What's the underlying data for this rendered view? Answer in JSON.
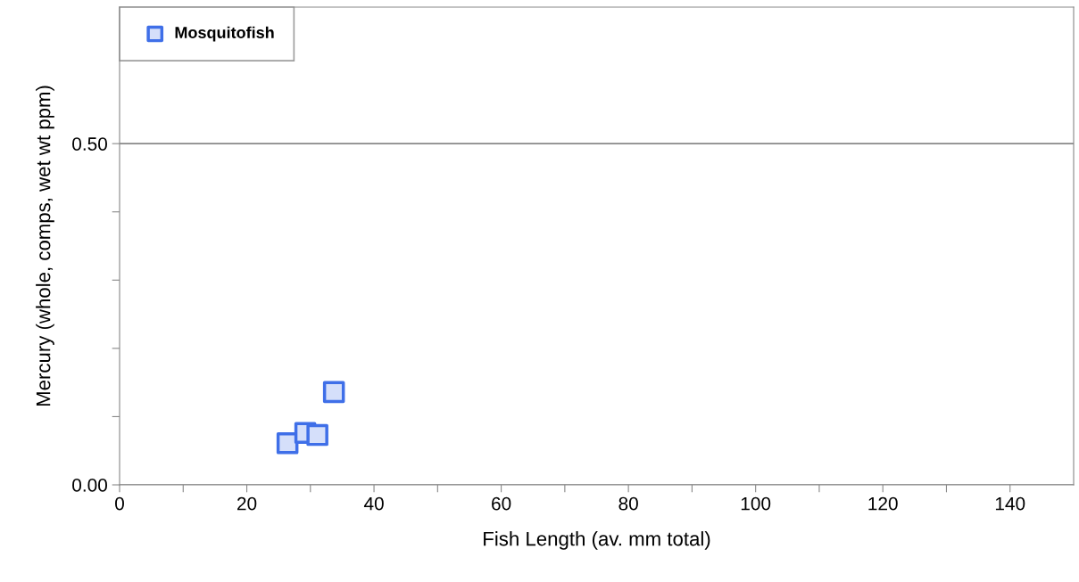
{
  "chart_data": {
    "type": "scatter",
    "xlabel": "Fish Length (av. mm total)",
    "ylabel": "Mercury (whole, comps, wet wt ppm)",
    "series": [
      {
        "name": "Mosquitofish",
        "color": "#3f6fe8",
        "x": [
          26.4,
          29.2,
          31.1,
          33.7
        ],
        "values": [
          0.061,
          0.076,
          0.073,
          0.136
        ]
      }
    ],
    "xlim": [
      0,
      150
    ],
    "ylim": [
      0,
      0.7
    ],
    "xticks": [
      0,
      {
        "value": 10,
        "label": null
      },
      20,
      {
        "value": 30,
        "label": null
      },
      40,
      {
        "value": 50,
        "label": null
      },
      60,
      {
        "value": 70,
        "label": null
      },
      80,
      {
        "value": 90,
        "label": null
      },
      100,
      {
        "value": 110,
        "label": null
      },
      120,
      {
        "value": 130,
        "label": null
      },
      140
    ],
    "yticks": [
      {
        "value": 0,
        "label": "0.00"
      },
      {
        "value": 0.1,
        "label": null
      },
      {
        "value": 0.2,
        "label": null
      },
      {
        "value": 0.3,
        "label": null
      },
      {
        "value": 0.4,
        "label": null
      },
      {
        "value": 0.5,
        "label": "0.50"
      }
    ],
    "grid": "y",
    "legend": "top left",
    "marker": "square"
  }
}
